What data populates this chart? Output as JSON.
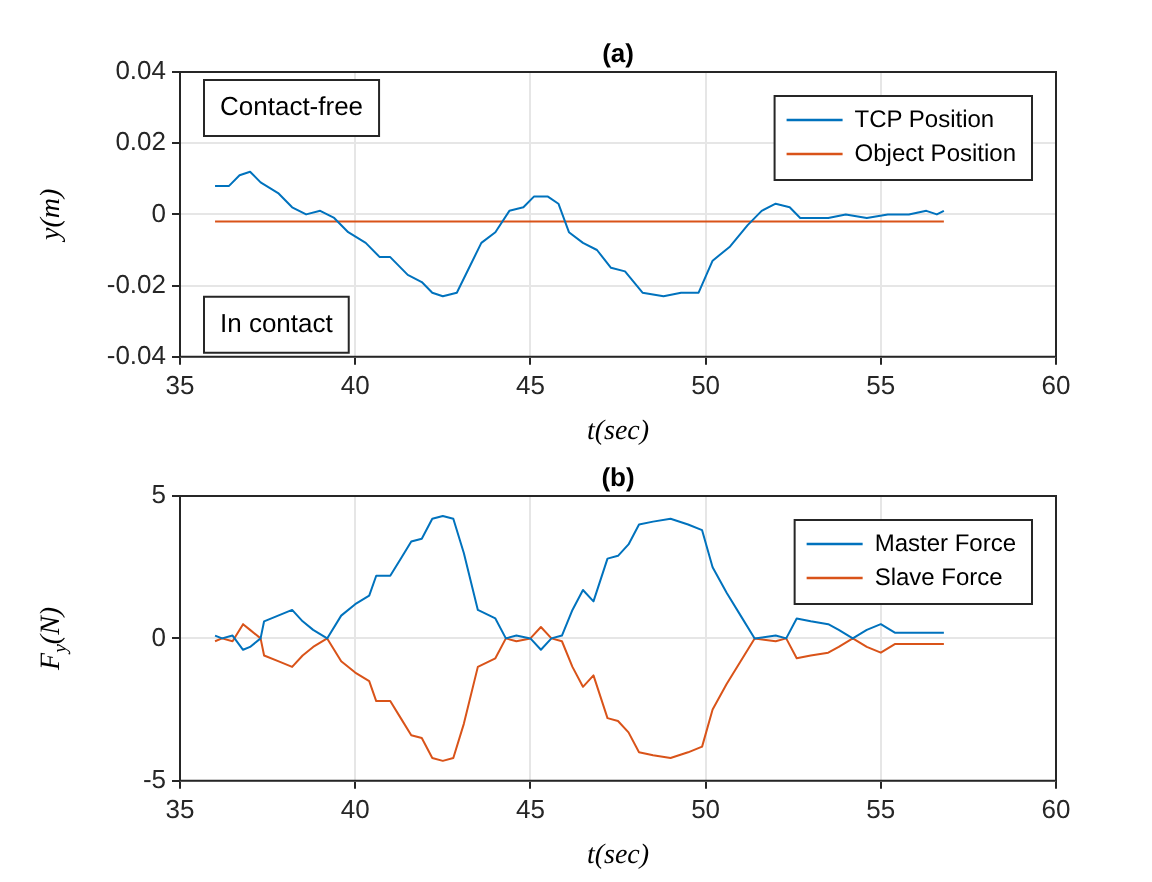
{
  "chart_data": [
    {
      "type": "line",
      "title": "(a)",
      "xlabel": "t(sec)",
      "ylabel": "y(m)",
      "annotations": [
        "Contact-free",
        "In contact"
      ],
      "x": [
        36.0,
        36.4,
        36.7,
        37.0,
        37.3,
        37.8,
        38.2,
        38.6,
        39.0,
        39.4,
        39.8,
        40.3,
        40.7,
        41.0,
        41.5,
        41.9,
        42.2,
        42.5,
        42.9,
        43.3,
        43.6,
        44.0,
        44.4,
        44.8,
        45.1,
        45.5,
        45.8,
        46.1,
        46.5,
        46.9,
        47.3,
        47.7,
        48.2,
        48.8,
        49.3,
        49.8,
        50.2,
        50.7,
        51.2,
        51.6,
        52.0,
        52.4,
        52.7,
        53.5,
        54.0,
        54.6,
        55.2,
        55.8,
        56.3,
        56.6,
        56.8
      ],
      "series": [
        {
          "name": "TCP Position",
          "color": "#0072bd",
          "values": [
            0.008,
            0.008,
            0.011,
            0.012,
            0.009,
            0.006,
            0.002,
            0.0,
            0.001,
            -0.001,
            -0.005,
            -0.008,
            -0.012,
            -0.012,
            -0.017,
            -0.019,
            -0.022,
            -0.023,
            -0.022,
            -0.014,
            -0.008,
            -0.005,
            0.001,
            0.002,
            0.005,
            0.005,
            0.003,
            -0.005,
            -0.008,
            -0.01,
            -0.015,
            -0.016,
            -0.022,
            -0.023,
            -0.022,
            -0.022,
            -0.013,
            -0.009,
            -0.003,
            0.001,
            0.003,
            0.002,
            -0.001,
            -0.001,
            0.0,
            -0.001,
            0.0,
            0.0,
            0.001,
            0.0,
            0.001
          ]
        },
        {
          "name": "Object Position",
          "color": "#d95319",
          "x": [
            36.0,
            56.8
          ],
          "values": [
            -0.002,
            -0.002
          ]
        }
      ],
      "xlim": [
        35,
        60
      ],
      "xticks": [
        35,
        40,
        45,
        50,
        55,
        60
      ],
      "ylim": [
        -0.04,
        0.04
      ],
      "yticks": [
        -0.04,
        -0.02,
        0,
        0.02,
        0.04
      ],
      "grid": true,
      "legend": "top right"
    },
    {
      "type": "line",
      "title": "(b)",
      "xlabel": "t(sec)",
      "ylabel": "F$_{y}$(N)",
      "x": [
        36.0,
        36.2,
        36.5,
        36.8,
        37.0,
        37.3,
        37.4,
        37.8,
        38.2,
        38.5,
        38.8,
        39.2,
        39.6,
        40.0,
        40.4,
        40.6,
        41.0,
        41.3,
        41.6,
        41.9,
        42.2,
        42.5,
        42.8,
        43.1,
        43.5,
        44.0,
        44.3,
        44.6,
        45.0,
        45.3,
        45.6,
        45.9,
        46.2,
        46.5,
        46.8,
        47.2,
        47.5,
        47.8,
        48.1,
        48.5,
        49.0,
        49.5,
        49.9,
        50.2,
        50.6,
        51.0,
        51.4,
        52.0,
        52.3,
        52.6,
        53.0,
        53.5,
        53.8,
        54.2,
        54.6,
        55.0,
        55.4,
        56.0,
        56.8
      ],
      "series": [
        {
          "name": "Master Force",
          "color": "#0072bd",
          "values": [
            0.1,
            0.0,
            0.1,
            -0.4,
            -0.3,
            0.0,
            0.6,
            0.8,
            1.0,
            0.6,
            0.3,
            0.0,
            0.8,
            1.2,
            1.5,
            2.2,
            2.2,
            2.8,
            3.4,
            3.5,
            4.2,
            4.3,
            4.2,
            3.0,
            1.0,
            0.7,
            0.0,
            0.1,
            0.0,
            -0.4,
            0.0,
            0.1,
            1.0,
            1.7,
            1.3,
            2.8,
            2.9,
            3.3,
            4.0,
            4.1,
            4.2,
            4.0,
            3.8,
            2.5,
            1.6,
            0.8,
            0.0,
            0.1,
            0.0,
            0.7,
            0.6,
            0.5,
            0.3,
            0.0,
            0.3,
            0.5,
            0.2,
            0.2,
            0.2
          ]
        },
        {
          "name": "Slave Force",
          "color": "#d95319",
          "values": [
            -0.1,
            0.0,
            -0.1,
            0.5,
            0.3,
            0.0,
            -0.6,
            -0.8,
            -1.0,
            -0.6,
            -0.3,
            0.0,
            -0.8,
            -1.2,
            -1.5,
            -2.2,
            -2.2,
            -2.8,
            -3.4,
            -3.5,
            -4.2,
            -4.3,
            -4.2,
            -3.0,
            -1.0,
            -0.7,
            0.0,
            -0.1,
            0.0,
            0.4,
            0.0,
            -0.1,
            -1.0,
            -1.7,
            -1.3,
            -2.8,
            -2.9,
            -3.3,
            -4.0,
            -4.1,
            -4.2,
            -4.0,
            -3.8,
            -2.5,
            -1.6,
            -0.8,
            0.0,
            -0.1,
            0.0,
            -0.7,
            -0.6,
            -0.5,
            -0.3,
            0.0,
            -0.3,
            -0.5,
            -0.2,
            -0.2,
            -0.2
          ]
        }
      ],
      "xlim": [
        35,
        60
      ],
      "xticks": [
        35,
        40,
        45,
        50,
        55,
        60
      ],
      "ylim": [
        -5,
        5
      ],
      "yticks": [
        -5,
        0,
        5
      ],
      "grid": true,
      "legend": "top right"
    }
  ]
}
